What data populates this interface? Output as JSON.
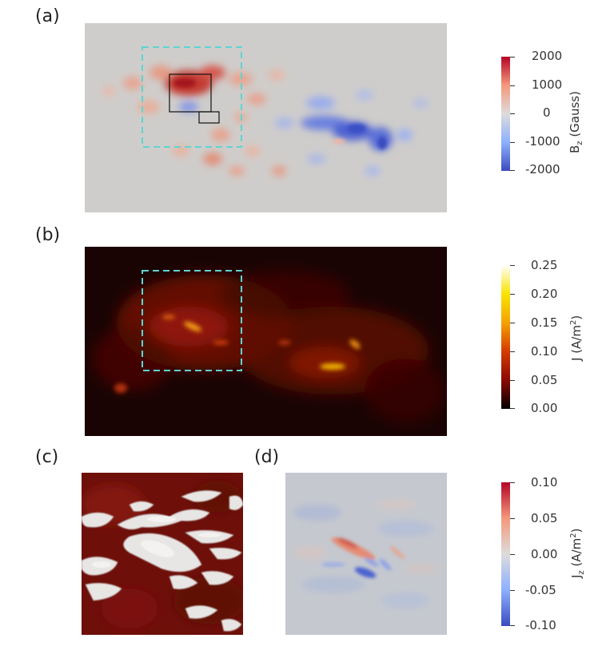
{
  "panels": {
    "a": {
      "label": "(a)"
    },
    "b": {
      "label": "(b)"
    },
    "c": {
      "label": "(c)"
    },
    "d": {
      "label": "(d)"
    }
  },
  "colorbars": {
    "bz": {
      "title_main": "B",
      "title_sub": "z",
      "title_unit": " (Gauss)",
      "ticks": [
        "2000",
        "1000",
        "0",
        "-1000",
        "-2000"
      ],
      "colors": [
        "#b40426",
        "#f4987a",
        "#dddcdc",
        "#8db0fe",
        "#3b4cc0"
      ]
    },
    "j": {
      "title_main": "J (A/m",
      "title_sup": "2",
      "title_end": ")",
      "ticks": [
        "0.25",
        "0.20",
        "0.15",
        "0.10",
        "0.05",
        "0.00"
      ],
      "colors": [
        "#ffffff",
        "#f7e400",
        "#f5a200",
        "#d63a00",
        "#8a0a00",
        "#000000"
      ]
    },
    "jz": {
      "title_main": "J",
      "title_sub": "z",
      "title_unit": " (A/m",
      "title_sup": "2",
      "title_end": ")",
      "ticks": [
        "0.10",
        "0.05",
        "0.00",
        "-0.05",
        "-0.10"
      ],
      "colors": [
        "#b40426",
        "#f4987a",
        "#dddcdc",
        "#8db0fe",
        "#3b4cc0"
      ]
    }
  }
}
